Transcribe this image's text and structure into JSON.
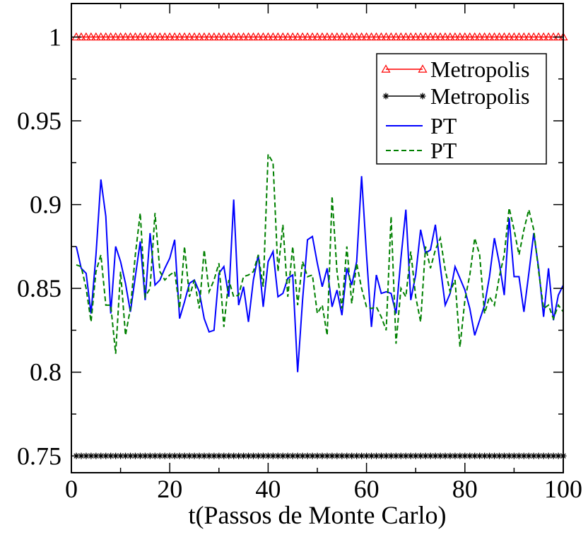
{
  "chart_data": {
    "type": "line",
    "title": "",
    "xlabel": "t(Passos de Monte Carlo)",
    "ylabel": "",
    "xlim": [
      0,
      100
    ],
    "ylim": [
      0.74,
      1.02
    ],
    "x_ticks": [
      0,
      20,
      40,
      60,
      80,
      100
    ],
    "x_tick_labels": [
      "0",
      "20",
      "40",
      "60",
      "80",
      "100"
    ],
    "y_ticks": [
      0.75,
      0.8,
      0.85,
      0.9,
      0.95,
      1.0
    ],
    "y_tick_labels": [
      "0.75",
      "0.8",
      "0.85",
      "0.9",
      "0.95",
      "1"
    ],
    "grid": false,
    "legend_position": "top-right",
    "series": [
      {
        "name": "Metropolis",
        "color": "#ff0000",
        "style": "solid",
        "marker": "triangle",
        "x": [
          1,
          2,
          3,
          4,
          5,
          6,
          7,
          8,
          9,
          10,
          11,
          12,
          13,
          14,
          15,
          16,
          17,
          18,
          19,
          20,
          21,
          22,
          23,
          24,
          25,
          26,
          27,
          28,
          29,
          30,
          31,
          32,
          33,
          34,
          35,
          36,
          37,
          38,
          39,
          40,
          41,
          42,
          43,
          44,
          45,
          46,
          47,
          48,
          49,
          50,
          51,
          52,
          53,
          54,
          55,
          56,
          57,
          58,
          59,
          60,
          61,
          62,
          63,
          64,
          65,
          66,
          67,
          68,
          69,
          70,
          71,
          72,
          73,
          74,
          75,
          76,
          77,
          78,
          79,
          80,
          81,
          82,
          83,
          84,
          85,
          86,
          87,
          88,
          89,
          90,
          91,
          92,
          93,
          94,
          95,
          96,
          97,
          98,
          99,
          100
        ],
        "values": [
          1,
          1,
          1,
          1,
          1,
          1,
          1,
          1,
          1,
          1,
          1,
          1,
          1,
          1,
          1,
          1,
          1,
          1,
          1,
          1,
          1,
          1,
          1,
          1,
          1,
          1,
          1,
          1,
          1,
          1,
          1,
          1,
          1,
          1,
          1,
          1,
          1,
          1,
          1,
          1,
          1,
          1,
          1,
          1,
          1,
          1,
          1,
          1,
          1,
          1,
          1,
          1,
          1,
          1,
          1,
          1,
          1,
          1,
          1,
          1,
          1,
          1,
          1,
          1,
          1,
          1,
          1,
          1,
          1,
          1,
          1,
          1,
          1,
          1,
          1,
          1,
          1,
          1,
          1,
          1,
          1,
          1,
          1,
          1,
          1,
          1,
          1,
          1,
          1,
          1,
          1,
          1,
          1,
          1,
          1,
          1,
          1,
          1,
          1,
          1
        ]
      },
      {
        "name": "Metropolis",
        "color": "#000000",
        "style": "solid",
        "marker": "star",
        "x": [
          1,
          2,
          3,
          4,
          5,
          6,
          7,
          8,
          9,
          10,
          11,
          12,
          13,
          14,
          15,
          16,
          17,
          18,
          19,
          20,
          21,
          22,
          23,
          24,
          25,
          26,
          27,
          28,
          29,
          30,
          31,
          32,
          33,
          34,
          35,
          36,
          37,
          38,
          39,
          40,
          41,
          42,
          43,
          44,
          45,
          46,
          47,
          48,
          49,
          50,
          51,
          52,
          53,
          54,
          55,
          56,
          57,
          58,
          59,
          60,
          61,
          62,
          63,
          64,
          65,
          66,
          67,
          68,
          69,
          70,
          71,
          72,
          73,
          74,
          75,
          76,
          77,
          78,
          79,
          80,
          81,
          82,
          83,
          84,
          85,
          86,
          87,
          88,
          89,
          90,
          91,
          92,
          93,
          94,
          95,
          96,
          97,
          98,
          99,
          100
        ],
        "values": [
          0.75,
          0.75,
          0.75,
          0.75,
          0.75,
          0.75,
          0.75,
          0.75,
          0.75,
          0.75,
          0.75,
          0.75,
          0.75,
          0.75,
          0.75,
          0.75,
          0.75,
          0.75,
          0.75,
          0.75,
          0.75,
          0.75,
          0.75,
          0.75,
          0.75,
          0.75,
          0.75,
          0.75,
          0.75,
          0.75,
          0.75,
          0.75,
          0.75,
          0.75,
          0.75,
          0.75,
          0.75,
          0.75,
          0.75,
          0.75,
          0.75,
          0.75,
          0.75,
          0.75,
          0.75,
          0.75,
          0.75,
          0.75,
          0.75,
          0.75,
          0.75,
          0.75,
          0.75,
          0.75,
          0.75,
          0.75,
          0.75,
          0.75,
          0.75,
          0.75,
          0.75,
          0.75,
          0.75,
          0.75,
          0.75,
          0.75,
          0.75,
          0.75,
          0.75,
          0.75,
          0.75,
          0.75,
          0.75,
          0.75,
          0.75,
          0.75,
          0.75,
          0.75,
          0.75,
          0.75,
          0.75,
          0.75,
          0.75,
          0.75,
          0.75,
          0.75,
          0.75,
          0.75,
          0.75,
          0.75,
          0.75,
          0.75,
          0.75,
          0.75,
          0.75,
          0.75,
          0.75,
          0.75,
          0.75,
          0.75
        ]
      },
      {
        "name": "PT",
        "color": "#0000ff",
        "style": "solid",
        "marker": "none",
        "x": [
          1,
          2,
          3,
          4,
          5,
          6,
          7,
          8,
          9,
          10,
          11,
          12,
          13,
          14,
          15,
          16,
          17,
          18,
          19,
          20,
          21,
          22,
          23,
          24,
          25,
          26,
          27,
          28,
          29,
          30,
          31,
          32,
          33,
          34,
          35,
          36,
          37,
          38,
          39,
          40,
          41,
          42,
          43,
          44,
          45,
          46,
          47,
          48,
          49,
          50,
          51,
          52,
          53,
          54,
          55,
          56,
          57,
          58,
          59,
          60,
          61,
          62,
          63,
          64,
          65,
          66,
          67,
          68,
          69,
          70,
          71,
          72,
          73,
          74,
          75,
          76,
          77,
          78,
          79,
          80,
          81,
          82,
          83,
          84,
          85,
          86,
          87,
          88,
          89,
          90,
          91,
          92,
          93,
          94,
          95,
          96,
          97,
          98,
          99,
          100
        ],
        "values": [
          0.875,
          0.862,
          0.859,
          0.835,
          0.87,
          0.915,
          0.893,
          0.835,
          0.875,
          0.866,
          0.853,
          0.836,
          0.857,
          0.878,
          0.843,
          0.883,
          0.852,
          0.855,
          0.862,
          0.868,
          0.879,
          0.832,
          0.842,
          0.853,
          0.855,
          0.848,
          0.832,
          0.824,
          0.825,
          0.859,
          0.863,
          0.845,
          0.903,
          0.84,
          0.851,
          0.83,
          0.855,
          0.87,
          0.839,
          0.866,
          0.872,
          0.845,
          0.847,
          0.856,
          0.858,
          0.8,
          0.843,
          0.879,
          0.881,
          0.865,
          0.851,
          0.862,
          0.839,
          0.849,
          0.834,
          0.862,
          0.852,
          0.866,
          0.917,
          0.87,
          0.827,
          0.858,
          0.847,
          0.848,
          0.847,
          0.835,
          0.868,
          0.897,
          0.843,
          0.858,
          0.885,
          0.871,
          0.873,
          0.888,
          0.863,
          0.84,
          0.847,
          0.863,
          0.856,
          0.849,
          0.838,
          0.822,
          0.831,
          0.84,
          0.857,
          0.88,
          0.865,
          0.846,
          0.892,
          0.857,
          0.857,
          0.836,
          0.859,
          0.883,
          0.862,
          0.833,
          0.862,
          0.831,
          0.846,
          0.852
        ]
      },
      {
        "name": "PT",
        "color": "#008000",
        "style": "dashed",
        "marker": "none",
        "x": [
          1,
          2,
          3,
          4,
          5,
          6,
          7,
          8,
          9,
          10,
          11,
          12,
          13,
          14,
          15,
          16,
          17,
          18,
          19,
          20,
          21,
          22,
          23,
          24,
          25,
          26,
          27,
          28,
          29,
          30,
          31,
          32,
          33,
          34,
          35,
          36,
          37,
          38,
          39,
          40,
          41,
          42,
          43,
          44,
          45,
          46,
          47,
          48,
          49,
          50,
          51,
          52,
          53,
          54,
          55,
          56,
          57,
          58,
          59,
          60,
          61,
          62,
          63,
          64,
          65,
          66,
          67,
          68,
          69,
          70,
          71,
          72,
          73,
          74,
          75,
          76,
          77,
          78,
          79,
          80,
          81,
          82,
          83,
          84,
          85,
          86,
          87,
          88,
          89,
          90,
          91,
          92,
          93,
          94,
          95,
          96,
          97,
          98,
          99,
          100
        ],
        "values": [
          0.864,
          0.863,
          0.85,
          0.83,
          0.86,
          0.87,
          0.84,
          0.84,
          0.811,
          0.86,
          0.822,
          0.838,
          0.87,
          0.895,
          0.845,
          0.85,
          0.895,
          0.86,
          0.855,
          0.858,
          0.86,
          0.838,
          0.875,
          0.845,
          0.855,
          0.838,
          0.873,
          0.848,
          0.855,
          0.865,
          0.827,
          0.855,
          0.845,
          0.846,
          0.857,
          0.858,
          0.86,
          0.87,
          0.851,
          0.93,
          0.925,
          0.86,
          0.888,
          0.845,
          0.875,
          0.84,
          0.866,
          0.857,
          0.858,
          0.835,
          0.84,
          0.822,
          0.905,
          0.86,
          0.838,
          0.875,
          0.841,
          0.865,
          0.85,
          0.839,
          0.838,
          0.839,
          0.833,
          0.825,
          0.893,
          0.817,
          0.85,
          0.845,
          0.872,
          0.845,
          0.83,
          0.875,
          0.862,
          0.873,
          0.88,
          0.861,
          0.848,
          0.855,
          0.815,
          0.843,
          0.858,
          0.88,
          0.87,
          0.835,
          0.845,
          0.84,
          0.857,
          0.87,
          0.898,
          0.885,
          0.87,
          0.885,
          0.897,
          0.885,
          0.86,
          0.838,
          0.84,
          0.832,
          0.84,
          0.836
        ]
      }
    ]
  }
}
